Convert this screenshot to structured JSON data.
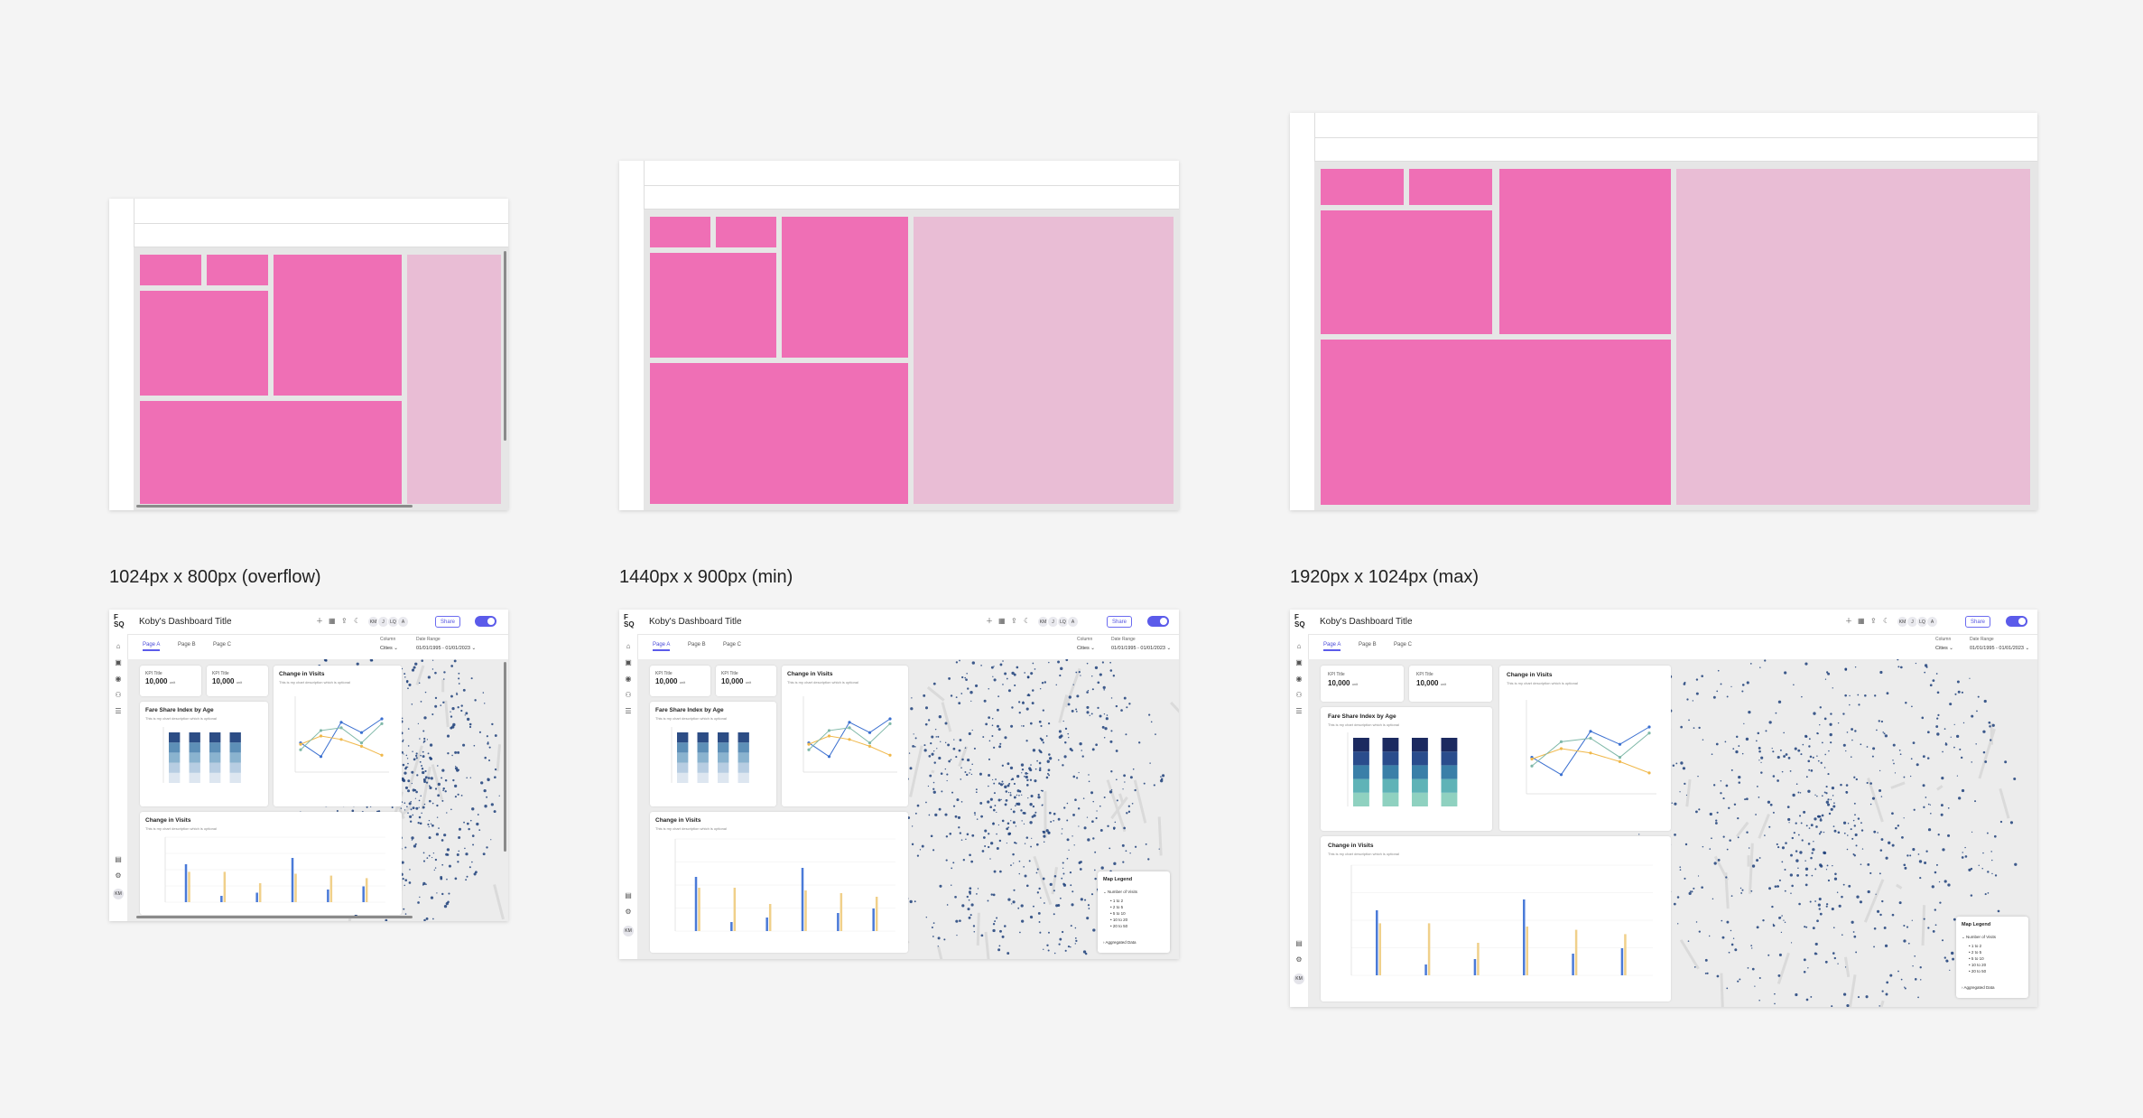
{
  "captions": {
    "small": "1024px x 800px (overflow)",
    "medium": "1440px x 900px (min)",
    "large": "1920px x 1024px (max)"
  },
  "dashboard": {
    "logo_top": "F",
    "logo_bottom": "SQ",
    "title": "Koby's Dashboard Title",
    "avatars": [
      "KM",
      "J",
      "LQ",
      "A"
    ],
    "share_label": "Share",
    "tabs": [
      "Page A",
      "Page B",
      "Page C"
    ],
    "filters": {
      "column_label": "Column",
      "column_value": "Cities",
      "date_label": "Date Range",
      "date_value": "01/01/1995 - 01/01/2023"
    },
    "kpis": [
      {
        "label": "KPI Title",
        "value": "10,000",
        "unit": "unit"
      },
      {
        "label": "KPI Title",
        "value": "10,000",
        "unit": "unit"
      }
    ],
    "fare_share": {
      "title": "Fare Share Index by Age",
      "subtitle": "This is my chart description which is optional"
    },
    "change_visits_line": {
      "title": "Change in Visits",
      "subtitle": "This is my chart description which is optional"
    },
    "change_visits_bar": {
      "title": "Change in Visits",
      "subtitle": "This is my chart description which is optional"
    },
    "map_legend": {
      "title": "Map Legend",
      "group": "Number of Visits",
      "items": [
        "1 to 2",
        "2 to 5",
        "5 to 10",
        "10 to 20",
        "20 to 50"
      ],
      "footer": "Aggregated Data"
    },
    "user_initials": "KM",
    "colors": {
      "accent": "#5b5bea",
      "map_blue": "#1d3f7a",
      "pink": "#ef6fb5"
    }
  },
  "charts": {
    "stacked_bar": {
      "type": "bar",
      "categories": [
        "",
        "",
        "",
        ""
      ],
      "series": [
        {
          "values": [
            20,
            20,
            20,
            20
          ]
        },
        {
          "values": [
            20,
            20,
            20,
            20
          ]
        },
        {
          "values": [
            20,
            20,
            20,
            20
          ]
        },
        {
          "values": [
            20,
            20,
            20,
            20
          ]
        },
        {
          "values": [
            20,
            20,
            20,
            20
          ]
        }
      ],
      "colors": [
        "#dde6f0",
        "#b7cde2",
        "#8ab3cf",
        "#5d8fb7",
        "#2c4d85"
      ],
      "colors_full": [
        "#8fd1c0",
        "#5fb3b7",
        "#3a7fa8",
        "#2a4c8c",
        "#1c2a60"
      ]
    },
    "line": {
      "type": "line",
      "x": [
        "",
        "",
        "",
        "",
        ""
      ],
      "series": [
        {
          "values": [
            40,
            20,
            70,
            55,
            75
          ],
          "color": "#3a6fd0"
        },
        {
          "values": [
            38,
            50,
            45,
            35,
            22
          ],
          "color": "#f0b84a"
        },
        {
          "values": [
            30,
            58,
            62,
            40,
            68
          ],
          "color": "#7fb8a8"
        }
      ]
    },
    "bar": {
      "type": "bar",
      "categories": [
        "",
        "",
        "",
        "",
        "",
        ""
      ],
      "series": [
        {
          "values": [
            60,
            10,
            15,
            70,
            20,
            25
          ],
          "color": "#4a7ad8"
        },
        {
          "values": [
            48,
            48,
            30,
            45,
            42,
            38
          ],
          "color": "#f0d08a"
        }
      ]
    }
  }
}
